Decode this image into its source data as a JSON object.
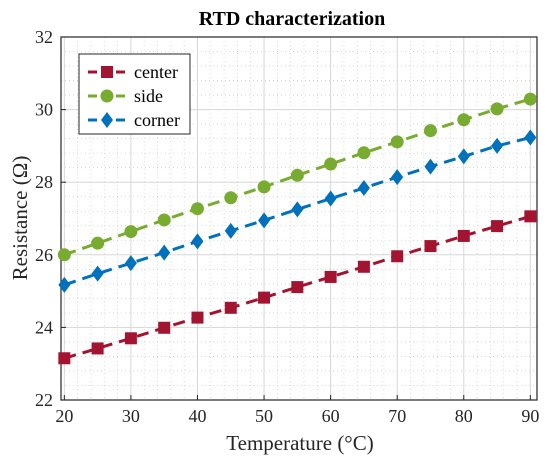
{
  "chart_data": {
    "type": "line",
    "title": "RTD characterization",
    "xlabel": "Temperature (°C)",
    "ylabel": "Resistance (Ω)",
    "xlim": [
      19.5,
      91
    ],
    "ylim": [
      22,
      32
    ],
    "x_ticks": [
      20,
      30,
      40,
      50,
      60,
      70,
      80,
      90
    ],
    "y_ticks": [
      22,
      24,
      26,
      28,
      30,
      32
    ],
    "grid": true,
    "legend_position": "top-left",
    "x": [
      20,
      25,
      30,
      35,
      40,
      45,
      50,
      55,
      60,
      65,
      70,
      75,
      80,
      85,
      90
    ],
    "series": [
      {
        "name": "center",
        "marker": "square",
        "color": "#a2142f",
        "values": [
          23.15,
          23.42,
          23.7,
          23.99,
          24.27,
          24.54,
          24.82,
          25.11,
          25.39,
          25.67,
          25.96,
          26.24,
          26.52,
          26.79,
          27.06
        ]
      },
      {
        "name": "side",
        "marker": "circle",
        "color": "#77ac30",
        "values": [
          26.0,
          26.32,
          26.64,
          26.96,
          27.27,
          27.57,
          27.87,
          28.19,
          28.5,
          28.81,
          29.11,
          29.42,
          29.72,
          30.02,
          30.29
        ]
      },
      {
        "name": "corner",
        "marker": "diamond",
        "color": "#0072bd",
        "values": [
          25.17,
          25.48,
          25.77,
          26.06,
          26.37,
          26.66,
          26.95,
          27.25,
          27.55,
          27.84,
          28.14,
          28.43,
          28.71,
          29.0,
          29.23
        ]
      }
    ]
  }
}
